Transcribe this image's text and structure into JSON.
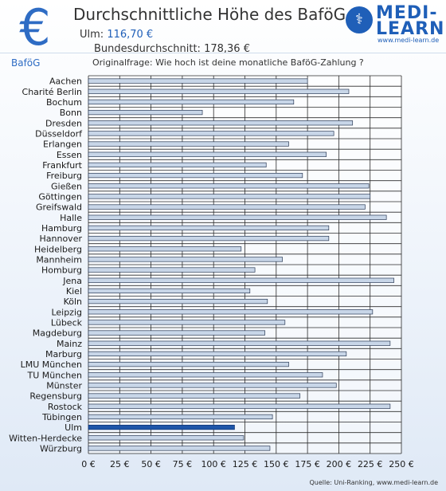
{
  "header": {
    "euro_symbol": "€",
    "title": "Durchschnittliche Höhe des BaföG",
    "ulm_label": "Ulm:",
    "ulm_value": "116,70 €",
    "national_label": "Bundesdurchschnitt:",
    "national_value": "178,36 €"
  },
  "logo": {
    "line1": "MEDI-",
    "line2": "LEARN",
    "url": "www.medi-learn.de",
    "emblem": "caduceus-icon"
  },
  "section_label": "BaföG",
  "question": "Originalfrage: Wie hoch ist deine monatliche BaföG-Zahlung ?",
  "source": "Quelle: Uni-Ranking, www.medi-learn.de",
  "colors": {
    "bar": "#c8d6e8",
    "bar_highlight": "#1f56a8",
    "bar_edge": "#2b3a55",
    "grid": "#2b2b2b"
  },
  "chart_data": {
    "type": "bar",
    "orientation": "horizontal",
    "categories": [
      "Aachen",
      "Charité Berlin",
      "Bochum",
      "Bonn",
      "Dresden",
      "Düsseldorf",
      "Erlangen",
      "Essen",
      "Frankfurt",
      "Freiburg",
      "Gießen",
      "Göttingen",
      "Greifswald",
      "Halle",
      "Hamburg",
      "Hannover",
      "Heidelberg",
      "Mannheim",
      "Homburg",
      "Jena",
      "Kiel",
      "Köln",
      "Leipzig",
      "Lübeck",
      "Magdeburg",
      "Mainz",
      "Marburg",
      "LMU München",
      "TU München",
      "Münster",
      "Regensburg",
      "Rostock",
      "Tübingen",
      "Ulm",
      "Witten-Herdecke",
      "Würzburg"
    ],
    "values": [
      175,
      208,
      164,
      91,
      211,
      196,
      160,
      190,
      142,
      171,
      224,
      225,
      221,
      238,
      192,
      192,
      122,
      155,
      133,
      244,
      129,
      143,
      227,
      157,
      141,
      241,
      206,
      160,
      187,
      198,
      169,
      241,
      147,
      116.7,
      124,
      145
    ],
    "highlight": "Ulm",
    "xlim": [
      0,
      250
    ],
    "xticks": [
      0,
      25,
      50,
      75,
      100,
      125,
      150,
      175,
      200,
      225,
      250
    ],
    "xtick_labels": [
      "0 €",
      "25 €",
      "50 €",
      "75 €",
      "100 €",
      "125 €",
      "150 €",
      "175 €",
      "200 €",
      "225 €",
      "250 €"
    ],
    "grid": true
  }
}
